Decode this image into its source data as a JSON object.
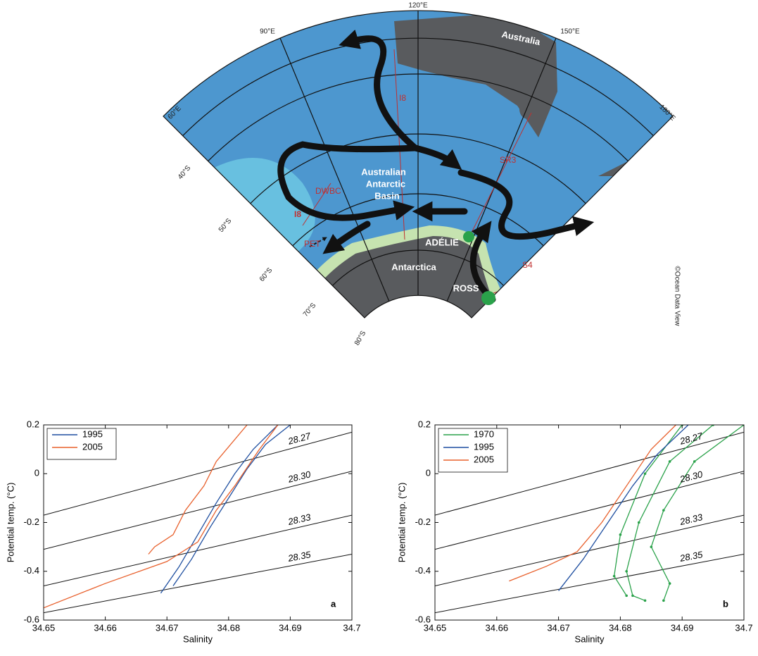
{
  "map": {
    "meridians": [
      "60°E",
      "90°E",
      "120°E",
      "150°E",
      "180°E"
    ],
    "parallels": [
      "40°S",
      "50°S",
      "60°S",
      "70°S",
      "80°S"
    ],
    "australia": "Australia",
    "basin": [
      "Australian",
      "Antarctic",
      "Basin"
    ],
    "adelie": "ADÉLIE",
    "antarctica": "Antarctica",
    "ross": "ROSS",
    "sections": [
      "I8",
      "SR3",
      "S4",
      "I8",
      "DWBC",
      "PET"
    ],
    "credit": "©Ocean Data View"
  },
  "chart_data": [
    {
      "type": "line",
      "panel": "a",
      "xlabel": "Salinity",
      "ylabel": "Potential temp. (°C)",
      "xlim": [
        34.65,
        34.7
      ],
      "xticks": [
        34.65,
        34.66,
        34.67,
        34.68,
        34.69,
        34.7
      ],
      "ylim": [
        -0.6,
        0.2
      ],
      "yticks": [
        -0.6,
        -0.4,
        -0.2,
        0,
        0.2
      ],
      "isopycnals": [
        {
          "label": "28.27",
          "x": [
            34.65,
            34.7
          ],
          "values": [
            -0.17,
            0.17
          ]
        },
        {
          "label": "28.30",
          "x": [
            34.65,
            34.7
          ],
          "values": [
            -0.31,
            0.01
          ]
        },
        {
          "label": "28.33",
          "x": [
            34.65,
            34.7
          ],
          "values": [
            -0.46,
            -0.17
          ]
        },
        {
          "label": "28.35",
          "x": [
            34.65,
            34.7
          ],
          "values": [
            -0.57,
            -0.33
          ]
        }
      ],
      "series": [
        {
          "name": "1995",
          "color": "#1f4fa0",
          "profiles": [
            {
              "x": [
                34.669,
                34.672,
                34.675,
                34.678,
                34.681,
                34.684,
                34.688
              ],
              "values": [
                -0.49,
                -0.38,
                -0.25,
                -0.12,
                0,
                0.1,
                0.2
              ]
            },
            {
              "x": [
                34.671,
                34.674,
                34.677,
                34.68,
                34.683,
                34.686,
                34.69
              ],
              "values": [
                -0.46,
                -0.35,
                -0.22,
                -0.1,
                0.02,
                0.12,
                0.2
              ]
            }
          ]
        },
        {
          "name": "2005",
          "color": "#e8602c",
          "profiles": [
            {
              "x": [
                34.65,
                34.66,
                34.67,
                34.675,
                34.678,
                34.681,
                34.685,
                34.688
              ],
              "values": [
                -0.55,
                -0.45,
                -0.36,
                -0.28,
                -0.15,
                -0.05,
                0.1,
                0.2
              ]
            },
            {
              "x": [
                34.667,
                34.668,
                34.671,
                34.673,
                34.676,
                34.678,
                34.683
              ],
              "values": [
                -0.33,
                -0.3,
                -0.25,
                -0.15,
                -0.05,
                0.05,
                0.2
              ]
            }
          ]
        }
      ]
    },
    {
      "type": "line",
      "panel": "b",
      "xlabel": "Salinity",
      "ylabel": "Potential temp. (°C)",
      "xlim": [
        34.65,
        34.7
      ],
      "xticks": [
        34.65,
        34.66,
        34.67,
        34.68,
        34.69,
        34.7
      ],
      "ylim": [
        -0.6,
        0.2
      ],
      "yticks": [
        -0.6,
        -0.4,
        -0.2,
        0,
        0.2
      ],
      "isopycnals": [
        {
          "label": "28.27",
          "x": [
            34.65,
            34.7
          ],
          "values": [
            -0.17,
            0.17
          ]
        },
        {
          "label": "28.30",
          "x": [
            34.65,
            34.7
          ],
          "values": [
            -0.31,
            0.01
          ]
        },
        {
          "label": "28.33",
          "x": [
            34.65,
            34.7
          ],
          "values": [
            -0.46,
            -0.17
          ]
        },
        {
          "label": "28.35",
          "x": [
            34.65,
            34.7
          ],
          "values": [
            -0.57,
            -0.33
          ]
        }
      ],
      "series": [
        {
          "name": "1970",
          "color": "#2aa24a",
          "markers": true,
          "profiles": [
            {
              "x": [
                34.695,
                34.688,
                34.683,
                34.681,
                34.682,
                34.684
              ],
              "values": [
                0.2,
                0.05,
                -0.2,
                -0.4,
                -0.5,
                -0.52
              ]
            },
            {
              "x": [
                34.7,
                34.692,
                34.687,
                34.685,
                34.688,
                34.687
              ],
              "values": [
                0.2,
                0.05,
                -0.15,
                -0.3,
                -0.45,
                -0.52
              ]
            },
            {
              "x": [
                34.69,
                34.684,
                34.68,
                34.679,
                34.681
              ],
              "values": [
                0.2,
                0,
                -0.25,
                -0.42,
                -0.5
              ]
            }
          ]
        },
        {
          "name": "1995",
          "color": "#1f4fa0",
          "profiles": [
            {
              "x": [
                34.67,
                34.674,
                34.678,
                34.682,
                34.686,
                34.691
              ],
              "values": [
                -0.48,
                -0.35,
                -0.2,
                -0.05,
                0.08,
                0.2
              ]
            }
          ]
        },
        {
          "name": "2005",
          "color": "#e8602c",
          "profiles": [
            {
              "x": [
                34.662,
                34.668,
                34.673,
                34.677,
                34.681,
                34.685,
                34.689
              ],
              "values": [
                -0.44,
                -0.38,
                -0.32,
                -0.2,
                -0.05,
                0.1,
                0.2
              ]
            }
          ]
        }
      ]
    }
  ]
}
